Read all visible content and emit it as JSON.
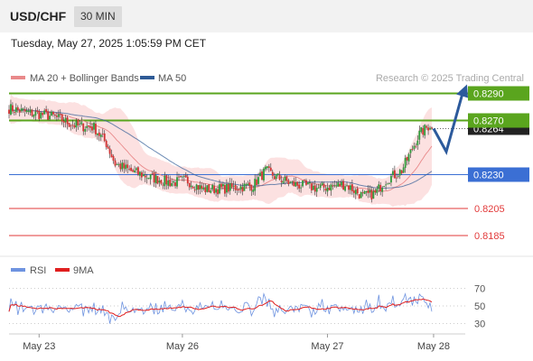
{
  "header": {
    "symbol": "USD/CHF",
    "timeframe": "30 MIN"
  },
  "datetime": "Tuesday, May 27, 2025 1:05:59 PM CET",
  "colors": {
    "ma20": "#e9898a",
    "ma50": "#2f5b96",
    "band_fill": "#fbdcdc",
    "resistance": "#5aa51e",
    "pivot": "#3b6fd4",
    "support": "#e23a3a",
    "bull": "#2e9b3a",
    "bear": "#d13434",
    "arrow": "#2c5a9c",
    "rsi": "#6e93e0",
    "rsi_ma": "#e01f1f"
  },
  "chart_data": [
    {
      "type": "candlestick",
      "legend": [
        {
          "label": "MA 20 + Bollinger Bands",
          "color": "#e9898a"
        },
        {
          "label": "MA 50",
          "color": "#2f5b96"
        }
      ],
      "watermark": "Research © 2025 Trading Central",
      "price_range": [
        0.8175,
        0.8303
      ],
      "levels": [
        {
          "value": 0.829,
          "label": "0.8290",
          "kind": "resistance"
        },
        {
          "value": 0.827,
          "label": "0.8270",
          "kind": "resistance"
        },
        {
          "value": 0.823,
          "label": "0.8230",
          "kind": "pivot"
        },
        {
          "value": 0.8205,
          "label": "0.8205",
          "kind": "support"
        },
        {
          "value": 0.8185,
          "label": "0.8185",
          "kind": "support"
        }
      ],
      "last_price": {
        "value": 0.8264,
        "label": "0.8264"
      },
      "x_labels": [
        "May 23",
        "May 26",
        "May 27",
        "May 28"
      ],
      "scenario": [
        0.8264,
        0.8247,
        0.829
      ]
    },
    {
      "type": "line",
      "title": "RSI",
      "series": [
        {
          "name": "RSI"
        },
        {
          "name": "9MA"
        }
      ],
      "yticks": [
        70,
        50,
        30
      ],
      "ylim": [
        18,
        82
      ]
    }
  ]
}
